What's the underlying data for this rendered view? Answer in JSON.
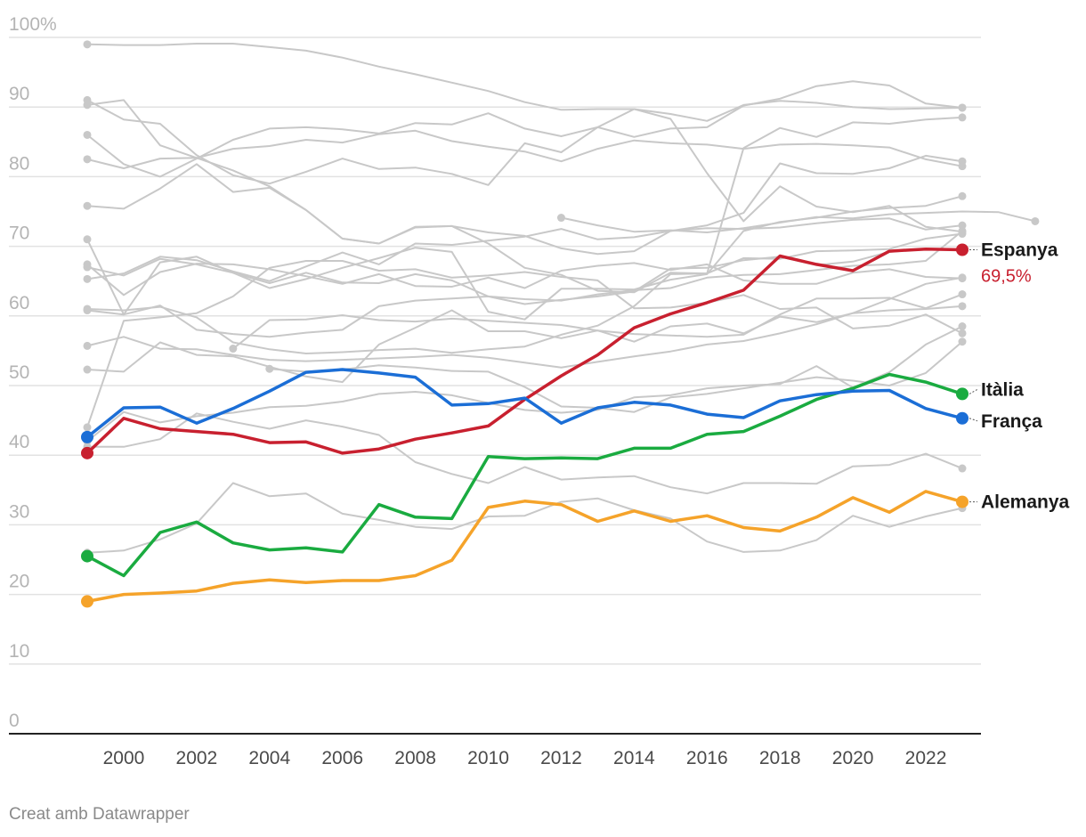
{
  "chart_data": {
    "type": "line",
    "x": [
      1999,
      2000,
      2001,
      2002,
      2003,
      2004,
      2005,
      2006,
      2007,
      2008,
      2009,
      2010,
      2011,
      2012,
      2013,
      2014,
      2015,
      2016,
      2017,
      2018,
      2019,
      2020,
      2021,
      2022,
      2023
    ],
    "x_ticks": [
      "2000",
      "2002",
      "2004",
      "2006",
      "2008",
      "2010",
      "2012",
      "2014",
      "2016",
      "2018",
      "2020",
      "2022"
    ],
    "x_tick_values": [
      2000,
      2002,
      2004,
      2006,
      2008,
      2010,
      2012,
      2014,
      2016,
      2018,
      2020,
      2022
    ],
    "y_ticks": [
      "0",
      "10",
      "20",
      "30",
      "40",
      "50",
      "60",
      "70",
      "80",
      "90",
      "100%"
    ],
    "y_tick_values": [
      0,
      10,
      20,
      30,
      40,
      50,
      60,
      70,
      80,
      90,
      100
    ],
    "ylim": [
      0,
      100
    ],
    "xlim": [
      1999,
      2023
    ],
    "grid": true,
    "highlight_series": [
      {
        "name": "Espanya",
        "color": "#c8202f",
        "end_label": "69,5%",
        "values": [
          40.3,
          45.3,
          43.8,
          43.4,
          43.0,
          41.8,
          41.9,
          40.3,
          40.9,
          42.3,
          43.2,
          44.2,
          48.0,
          51.4,
          54.4,
          58.3,
          60.3,
          61.9,
          63.7,
          68.6,
          67.4,
          66.5,
          69.3,
          69.6,
          69.5
        ]
      },
      {
        "name": "Itàlia",
        "color": "#1aab40",
        "values": [
          25.5,
          22.7,
          28.9,
          30.4,
          27.4,
          26.4,
          26.7,
          26.1,
          32.9,
          31.1,
          30.9,
          39.8,
          39.5,
          39.6,
          39.5,
          41.0,
          41.0,
          43.0,
          43.4,
          45.6,
          48.0,
          49.6,
          51.6,
          50.5,
          48.8
        ]
      },
      {
        "name": "França",
        "color": "#1b6ed6",
        "values": [
          42.6,
          46.8,
          46.9,
          44.6,
          46.7,
          49.2,
          51.9,
          52.3,
          51.8,
          51.2,
          47.2,
          47.4,
          48.2,
          44.6,
          46.8,
          47.6,
          47.2,
          45.9,
          45.4,
          47.8,
          48.7,
          49.2,
          49.3,
          46.7,
          45.3
        ]
      },
      {
        "name": "Alemanya",
        "color": "#f5a32a",
        "values": [
          19.0,
          20.0,
          20.2,
          20.5,
          21.6,
          22.1,
          21.7,
          22.0,
          22.0,
          22.7,
          24.9,
          32.5,
          33.4,
          32.9,
          30.5,
          32.0,
          30.5,
          31.3,
          29.6,
          29.1,
          31.1,
          33.9,
          31.8,
          34.8,
          33.3
        ]
      }
    ],
    "context_series": [
      {
        "start": 1999,
        "values": [
          99.0,
          98.9,
          98.9,
          99.1,
          99.1,
          98.6,
          98.1,
          97.1,
          95.8,
          94.7,
          93.5,
          92.3,
          90.7,
          89.6,
          89.7,
          89.7,
          89.0,
          88.0,
          90.3,
          90.9,
          90.6,
          90.0,
          89.7,
          89.8,
          89.9
        ]
      },
      {
        "start": 1999,
        "values": [
          91.0,
          88.2,
          87.6,
          83.1,
          80.2,
          79.0,
          80.7,
          82.6,
          81.1,
          81.3,
          80.4,
          78.8,
          84.8,
          83.5,
          87.1,
          85.7,
          86.9,
          87.1,
          90.2,
          91.2,
          93.0,
          93.7,
          93.1,
          90.5,
          89.9
        ]
      },
      {
        "start": 1999,
        "values": [
          90.3,
          91.0,
          84.5,
          82.7,
          80.9,
          78.6,
          75.2,
          71.1,
          70.4,
          72.8,
          72.9,
          72.0,
          71.5,
          69.7,
          68.9,
          69.3,
          72.2,
          73.0,
          74.8,
          81.9,
          80.5,
          80.4,
          81.2,
          83.0,
          82.2
        ]
      },
      {
        "start": 1999,
        "values": [
          86.0,
          81.8,
          80.0,
          82.6,
          85.3,
          86.9,
          87.1,
          86.8,
          86.2,
          87.7,
          87.5,
          89.1,
          86.9,
          85.8,
          87.1,
          89.7,
          88.3,
          80.5,
          73.6,
          78.6,
          75.7,
          74.9,
          75.8,
          72.8,
          72.1
        ]
      },
      {
        "start": 1999,
        "values": [
          82.5,
          81.2,
          82.6,
          82.7,
          84.0,
          84.4,
          85.3,
          84.9,
          86.1,
          86.6,
          85.1,
          84.3,
          83.6,
          82.2,
          84.0,
          85.2,
          84.8,
          84.6,
          84.0,
          84.6,
          84.7,
          84.5,
          84.2,
          82.5,
          81.5
        ]
      },
      {
        "start": 1999,
        "values": [
          75.8,
          75.4,
          78.3,
          81.8,
          77.8,
          78.4,
          75.2,
          71.1,
          70.4,
          72.7,
          72.9,
          70.4,
          66.9,
          65.9,
          63.6,
          63.4,
          66.2,
          66.1,
          84.1,
          87.0,
          85.7,
          87.8,
          87.6,
          88.2,
          88.5
        ]
      },
      {
        "start": 1999,
        "values": [
          71.0,
          60.2,
          67.7,
          68.5,
          66.2,
          64.7,
          66.2,
          64.8,
          64.7,
          66.0,
          65.1,
          62.8,
          61.7,
          62.3,
          62.8,
          63.5,
          66.8,
          66.9,
          68.0,
          68.5,
          67.3,
          67.8,
          69.2,
          69.6,
          69.5
        ]
      },
      {
        "start": 1999,
        "values": [
          67.4,
          63.0,
          66.3,
          67.5,
          67.4,
          66.7,
          65.7,
          64.6,
          66.0,
          64.3,
          64.2,
          65.5,
          64.0,
          66.5,
          67.2,
          67.6,
          66.6,
          67.4,
          65.1,
          64.6,
          64.6,
          66.2,
          66.7,
          65.6,
          65.4
        ]
      },
      {
        "start": 1999,
        "values": [
          67.0,
          65.8,
          68.2,
          67.4,
          66.2,
          64.0,
          65.3,
          66.9,
          68.3,
          69.8,
          69.2,
          60.6,
          59.5,
          63.9,
          63.9,
          63.8,
          65.2,
          66.0,
          72.2,
          73.5,
          74.1,
          75.0,
          75.5,
          75.8,
          77.2
        ]
      },
      {
        "start": 1999,
        "values": [
          65.3,
          66.1,
          68.5,
          68.0,
          66.4,
          65.0,
          67.1,
          69.1,
          67.4,
          70.4,
          70.2,
          70.8,
          71.4,
          72.5,
          71.0,
          71.3,
          72.2,
          72.6,
          72.5,
          72.7,
          73.3,
          73.8,
          74.0,
          72.4,
          73.0
        ]
      },
      {
        "start": 1999,
        "values": [
          61.0,
          60.8,
          61.3,
          59.8,
          56.2,
          55.2,
          54.6,
          54.8,
          55.1,
          55.3,
          54.7,
          55.2,
          55.6,
          57.3,
          58.6,
          61.4,
          66.0,
          66.1,
          68.3,
          68.2,
          69.3,
          69.4,
          69.6,
          71.1,
          71.8
        ]
      },
      {
        "start": 1999,
        "values": [
          60.8,
          60.2,
          61.5,
          58.0,
          57.4,
          57.0,
          57.6,
          58.0,
          61.4,
          62.2,
          62.5,
          62.8,
          62.4,
          62.2,
          63.1,
          63.7,
          64.0,
          65.5,
          65.9,
          66.0,
          66.6,
          67.2,
          67.4,
          67.9,
          72.2
        ]
      },
      {
        "start": 1999,
        "values": [
          55.7,
          57.0,
          55.3,
          55.2,
          54.4,
          53.7,
          53.5,
          53.7,
          53.9,
          54.1,
          54.4,
          54.0,
          53.3,
          52.6,
          53.4,
          54.2,
          54.9,
          55.9,
          56.4,
          57.5,
          58.8,
          60.4,
          62.4,
          64.6,
          65.5
        ]
      },
      {
        "start": 1999,
        "values": [
          52.3,
          52.0,
          56.2,
          54.4,
          54.2,
          52.7,
          51.3,
          50.5,
          55.9,
          58.3,
          60.8,
          57.8,
          57.8,
          56.8,
          57.9,
          57.4,
          57.2,
          57.0,
          57.3,
          60.2,
          62.5,
          62.5,
          62.6,
          61.1,
          63.1
        ]
      },
      {
        "start": 1999,
        "values": [
          44.0,
          59.3,
          59.8,
          60.4,
          62.8,
          66.9,
          67.9,
          67.9,
          66.5,
          66.7,
          65.5,
          65.8,
          66.3,
          65.6,
          65.1,
          61.1,
          61.2,
          61.9,
          63.0,
          61.0,
          61.2,
          58.2,
          58.6,
          60.2,
          57.5
        ]
      },
      {
        "start": 1999,
        "values": [
          42.0,
          46.2,
          44.7,
          45.6,
          46.1,
          46.9,
          47.1,
          47.7,
          48.8,
          49.1,
          48.6,
          47.5,
          46.5,
          46.1,
          46.5,
          48.3,
          48.6,
          49.6,
          50.0,
          50.2,
          52.8,
          49.7,
          51.9,
          55.9,
          58.5
        ]
      },
      {
        "start": 1999,
        "values": [
          41.2,
          41.2,
          42.3,
          46.0,
          44.8,
          43.8,
          45.0,
          44.1,
          42.9,
          39.0,
          37.3,
          36.0,
          38.3,
          36.5,
          36.8,
          37.0,
          35.4,
          34.5,
          36.0,
          36.0,
          35.9,
          38.4,
          38.6,
          40.2,
          38.1
        ]
      },
      {
        "start": 1999,
        "values": [
          26.0,
          26.3,
          27.9,
          30.2,
          36.0,
          34.1,
          34.5,
          31.6,
          30.7,
          29.7,
          29.4,
          31.2,
          31.3,
          33.3,
          33.8,
          32.1,
          30.9,
          27.6,
          26.1,
          26.3,
          27.8,
          31.3,
          29.7,
          31.2,
          32.4
        ]
      },
      {
        "start": 2003,
        "values": [
          55.3,
          59.4,
          59.5,
          60.1,
          59.4,
          59.2,
          59.6,
          59.3,
          59.0,
          58.7,
          57.9,
          56.3,
          58.5,
          58.9,
          57.5,
          59.9,
          59.1,
          60.4,
          60.8,
          61.0,
          61.4
        ]
      },
      {
        "start": 2004,
        "values": [
          52.4,
          52.0,
          52.3,
          52.9,
          52.6,
          52.1,
          52.0,
          49.8,
          47.0,
          46.8,
          46.2,
          48.3,
          48.8,
          49.6,
          50.4,
          51.2,
          50.7,
          50.0,
          51.8,
          56.3
        ]
      },
      {
        "start": 2012,
        "values": [
          74.1,
          73.0,
          72.1,
          72.3,
          72.0,
          72.6,
          73.4,
          74.2,
          74.0,
          74.6,
          74.8,
          75.0,
          74.9,
          73.6
        ]
      }
    ]
  },
  "credit": "Creat amb Datawrapper",
  "colors": {
    "context": "#c8c8c8",
    "grid": "#e2e2e2",
    "axis": "#222222"
  }
}
